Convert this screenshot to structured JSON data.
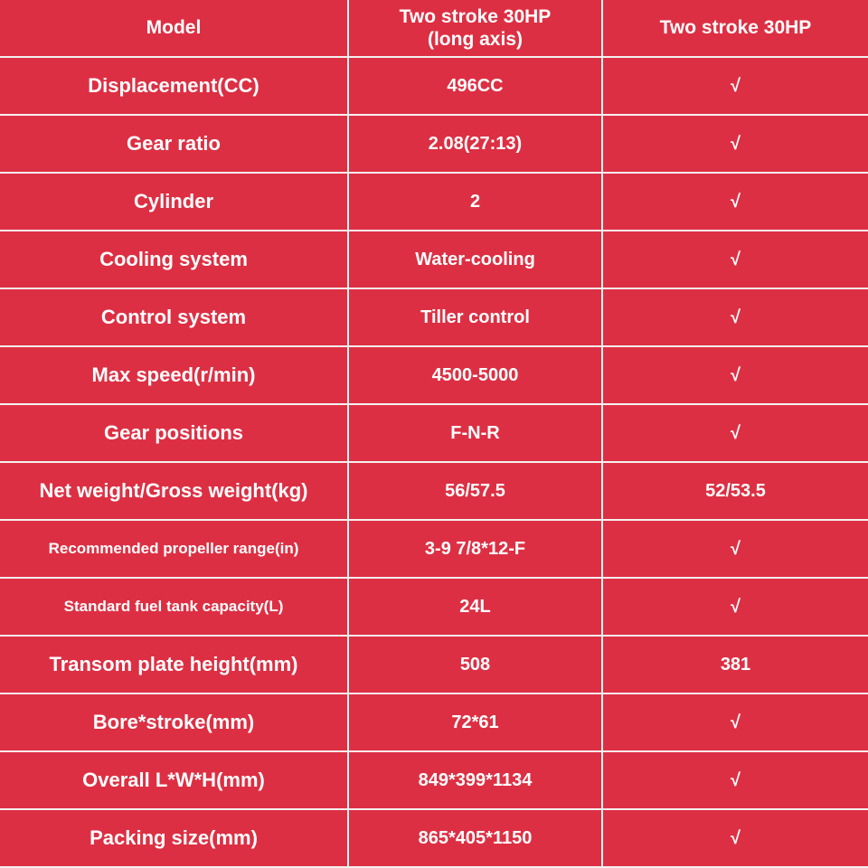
{
  "header": {
    "model": "Model",
    "col1": "Two stroke 30HP\n(long axis)",
    "col1_line1": "Two stroke 30HP",
    "col1_line2": "(long axis)",
    "col2": "Two stroke 30HP"
  },
  "rows": [
    {
      "label": "Displacement(CC)",
      "a": "496CC",
      "b": "√"
    },
    {
      "label": "Gear ratio",
      "a": "2.08(27:13)",
      "b": "√"
    },
    {
      "label": "Cylinder",
      "a": "2",
      "b": "√"
    },
    {
      "label": "Cooling system",
      "a": "Water-cooling",
      "b": "√"
    },
    {
      "label": "Control system",
      "a": "Tiller control",
      "b": "√"
    },
    {
      "label": "Max speed(r/min)",
      "a": "4500-5000",
      "b": "√"
    },
    {
      "label": "Gear positions",
      "a": "F-N-R",
      "b": "√"
    },
    {
      "label": "Net weight/Gross weight(kg)",
      "a": "56/57.5",
      "b": "52/53.5"
    },
    {
      "label": "Recommended propeller range(in)",
      "a": "3-9 7/8*12-F",
      "b": "√"
    },
    {
      "label": "Standard fuel tank capacity(L)",
      "a": "24L",
      "b": "√"
    },
    {
      "label": "Transom plate height(mm)",
      "a": "508",
      "b": "381"
    },
    {
      "label": "Bore*stroke(mm)",
      "a": "72*61",
      "b": "√"
    },
    {
      "label": "Overall L*W*H(mm)",
      "a": "849*399*1134",
      "b": "√"
    },
    {
      "label": "Packing size(mm)",
      "a": "865*405*1150",
      "b": "√"
    }
  ],
  "colors": {
    "background": "#dd2f43",
    "grid": "#f4f0f0",
    "text": "#ffffff"
  }
}
